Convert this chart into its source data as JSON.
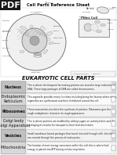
{
  "title": "Cell Parts Reference Sheet",
  "subtitle": "EUKARYOTIC CELL PARTS",
  "pdf_label": "PDF",
  "name_label": "Name: ________________",
  "rows": [
    {
      "term": "Nucleus",
      "term_bold": true,
      "description": "This is where the blueprint for making proteins are stored in large molecules of DNA. These large packages of DNA are called chromosomes.",
      "bg_color": "#d8d8d8",
      "text_bg": "#f2f2f2"
    },
    {
      "term": "Endoplasmic\nReticulum",
      "term_bold": false,
      "description": "This organelle provides many functions including being the factory where many organelles are synthesized and then distributed around the cell.",
      "bg_color": "#f2f2f2",
      "text_bg": "#fafafa"
    },
    {
      "term": "Ribosomes",
      "term_bold": true,
      "description": "These macromolecules drive the synthesis of proteins. Ribosomes give the rough endoplasmic reticulum its rough appearance.",
      "bg_color": "#d8d8d8",
      "text_bg": "#f2f2f2"
    },
    {
      "term": "Golgi body\n(Golgi Apparatus)",
      "term_bold": false,
      "description": "This is where proteins are modified by adding sugars or carbohydrates and the packaging of vesicles for transport to their final destination.",
      "bg_color": "#f2f2f2",
      "text_bg": "#fafafa"
    },
    {
      "term": "Vesicles",
      "term_bold": true,
      "description": "Small membrane bound packages that travel into and through cells. Vesicles are created through the process of endocytosis.",
      "bg_color": "#d8d8d8",
      "text_bg": "#f2f2f2"
    },
    {
      "term": "Mitochondria",
      "term_bold": false,
      "description": "The location of most energy conversion within the cell, this is where food energy is placed into ATP during cellular respiration.",
      "bg_color": "#f2f2f2",
      "text_bg": "#fafafa"
    }
  ],
  "background_color": "#ffffff",
  "header_color": "#111111",
  "pdf_bg": "#1a1a1a",
  "pdf_text": "#ffffff",
  "diagram_bg": "#ffffff",
  "cell_fill": "#f0f0f0",
  "cell_edge": "#666666",
  "nucleus_fill": "#d8d8d8",
  "nucleolus_fill": "#aaaaaa"
}
